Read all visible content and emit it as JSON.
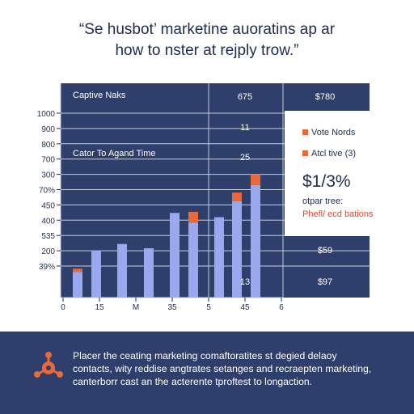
{
  "header": {
    "title_line1": "“Se husbot’ marketine auoratins ap ar",
    "title_line2": "how to nster at rejply trow.”"
  },
  "chart_data": {
    "type": "bar",
    "y_ticks": [
      "1000",
      "900",
      "800",
      "700",
      "300",
      "70%",
      "450",
      "400",
      "535",
      "200",
      "39%"
    ],
    "x_ticks": [
      "0",
      "15",
      "M",
      "35",
      "5",
      "45",
      "6"
    ],
    "ylim": [
      0,
      1000
    ],
    "grid": true,
    "series": [
      {
        "values": [
          120,
          220,
          250,
          230,
          395,
          350,
          375,
          450,
          525
        ]
      },
      {
        "values": [
          15,
          0,
          0,
          0,
          0,
          50,
          0,
          40,
          50
        ]
      }
    ],
    "panel_labels": {
      "header_left": "Captive Naks",
      "header_mid": "675",
      "header_right": "$780",
      "row2_mid": "11",
      "row3_left": "Cator To Agand Time",
      "row3_mid": "25",
      "bottom_right_1": "$59",
      "bottom_mid": "13",
      "bottom_right_2": "$97"
    },
    "legend": {
      "position": "right",
      "items": [
        {
          "label": "Vote Nords",
          "color": "#e8693a"
        },
        {
          "label": "Atcl tive (3)",
          "color": "#e8693a"
        }
      ],
      "big_value": "$1/3%",
      "sub_label": "otpar tree:",
      "note": "Phefl/ ecd bations"
    }
  },
  "footer": {
    "lines": [
      "Placer the ceating marketing comaftoratites st degied delaoy",
      "contacts, wity reddise angtrates setanges and recraepten marketing,",
      "canterborr cast an the acterente tproftest to longaction."
    ]
  },
  "colors": {
    "panel": "#2f3f6b",
    "bar_blue": "#9aa8ee",
    "bar_orange": "#e8693a",
    "grid": "#c7cde0",
    "note": "#d34b3c"
  }
}
